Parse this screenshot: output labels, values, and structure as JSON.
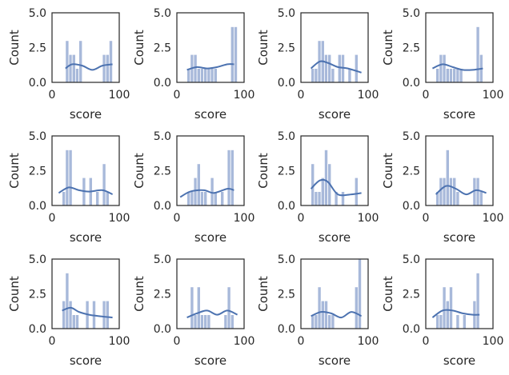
{
  "chart_data": {
    "type": "histogram-grid",
    "rows": 3,
    "cols": 4,
    "xlabel": "score",
    "ylabel": "Count",
    "xlim": [
      0,
      100
    ],
    "ylim": [
      0,
      5
    ],
    "xticks": [
      0,
      100
    ],
    "yticks": [
      0.0,
      2.5,
      5.0
    ],
    "ytick_labels": [
      "0.0",
      "2.5",
      "5.0"
    ],
    "xtick_labels": [
      "0",
      "100"
    ],
    "bin_edges": [
      15,
      20,
      25,
      30,
      35,
      40,
      45,
      50,
      55,
      60,
      65,
      70,
      75,
      80,
      85,
      90
    ],
    "bar_color": "#a8b9da",
    "kde_color": "#4c72b0",
    "subplots": [
      {
        "counts": [
          0,
          3,
          2,
          2,
          1,
          3,
          0,
          0,
          0,
          0,
          0,
          0,
          2,
          2,
          3,
          0
        ],
        "kde": [
          [
            20,
            1.0
          ],
          [
            30,
            1.3
          ],
          [
            45,
            1.2
          ],
          [
            60,
            0.9
          ],
          [
            75,
            1.2
          ],
          [
            90,
            1.3
          ]
        ]
      },
      {
        "counts": [
          1,
          2,
          2,
          1,
          1,
          1,
          1,
          1,
          1,
          0,
          0,
          0,
          0,
          4,
          4,
          0
        ],
        "kde": [
          [
            15,
            0.9
          ],
          [
            30,
            1.1
          ],
          [
            45,
            1.0
          ],
          [
            60,
            1.1
          ],
          [
            75,
            1.3
          ],
          [
            85,
            1.3
          ]
        ]
      },
      {
        "counts": [
          1,
          1,
          3,
          3,
          2,
          2,
          1,
          0,
          2,
          2,
          0,
          1,
          0,
          2,
          0,
          0
        ],
        "kde": [
          [
            15,
            1.0
          ],
          [
            28,
            1.5
          ],
          [
            40,
            1.4
          ],
          [
            55,
            1.1
          ],
          [
            70,
            1.0
          ],
          [
            90,
            0.7
          ]
        ]
      },
      {
        "counts": [
          1,
          2,
          2,
          1,
          1,
          1,
          1,
          1,
          0,
          0,
          0,
          0,
          4,
          2,
          0,
          0
        ],
        "kde": [
          [
            10,
            1.0
          ],
          [
            25,
            1.3
          ],
          [
            40,
            1.1
          ],
          [
            55,
            0.9
          ],
          [
            70,
            0.9
          ],
          [
            85,
            1.0
          ]
        ]
      },
      {
        "counts": [
          1,
          4,
          4,
          0,
          0,
          0,
          2,
          0,
          2,
          0,
          1,
          0,
          3,
          1,
          0,
          0
        ],
        "kde": [
          [
            10,
            0.9
          ],
          [
            25,
            1.3
          ],
          [
            40,
            1.1
          ],
          [
            55,
            1.0
          ],
          [
            75,
            1.1
          ],
          [
            90,
            0.8
          ]
        ]
      },
      {
        "counts": [
          1,
          1,
          2,
          3,
          1,
          1,
          0,
          2,
          1,
          0,
          1,
          0,
          4,
          4,
          0,
          0
        ],
        "kde": [
          [
            5,
            0.6
          ],
          [
            20,
            1.0
          ],
          [
            40,
            1.1
          ],
          [
            55,
            0.9
          ],
          [
            75,
            1.2
          ],
          [
            85,
            1.1
          ]
        ]
      },
      {
        "counts": [
          3,
          1,
          1,
          2,
          4,
          3,
          0,
          1,
          0,
          1,
          0,
          0,
          0,
          2,
          0,
          2
        ],
        "kde": [
          [
            15,
            1.2
          ],
          [
            28,
            1.8
          ],
          [
            40,
            1.7
          ],
          [
            55,
            0.8
          ],
          [
            75,
            0.8
          ],
          [
            90,
            0.9
          ]
        ]
      },
      {
        "counts": [
          1,
          2,
          2,
          4,
          2,
          2,
          1,
          0,
          0,
          0,
          0,
          2,
          2,
          1,
          0,
          0
        ],
        "kde": [
          [
            15,
            0.8
          ],
          [
            30,
            1.4
          ],
          [
            45,
            1.2
          ],
          [
            60,
            0.8
          ],
          [
            75,
            1.1
          ],
          [
            90,
            0.9
          ]
        ]
      },
      {
        "counts": [
          2,
          4,
          2,
          1,
          1,
          0,
          0,
          2,
          0,
          2,
          0,
          0,
          2,
          2,
          0,
          0
        ],
        "kde": [
          [
            15,
            1.3
          ],
          [
            28,
            1.5
          ],
          [
            40,
            1.2
          ],
          [
            55,
            1.0
          ],
          [
            70,
            0.9
          ],
          [
            90,
            0.8
          ]
        ]
      },
      {
        "counts": [
          0,
          3,
          1,
          3,
          1,
          1,
          1,
          0,
          0,
          0,
          0,
          1,
          3,
          1,
          0,
          0
        ],
        "kde": [
          [
            15,
            0.8
          ],
          [
            30,
            1.1
          ],
          [
            45,
            1.3
          ],
          [
            60,
            1.0
          ],
          [
            75,
            1.3
          ],
          [
            90,
            1.0
          ]
        ]
      },
      {
        "counts": [
          1,
          1,
          3,
          2,
          2,
          1,
          1,
          0,
          0,
          0,
          0,
          0,
          0,
          3,
          5,
          0
        ],
        "kde": [
          [
            15,
            0.9
          ],
          [
            30,
            1.2
          ],
          [
            45,
            1.1
          ],
          [
            60,
            0.8
          ],
          [
            75,
            1.2
          ],
          [
            90,
            0.9
          ]
        ]
      },
      {
        "counts": [
          1,
          1,
          3,
          2,
          3,
          0,
          1,
          0,
          1,
          0,
          0,
          2,
          4,
          0,
          0,
          0
        ],
        "kde": [
          [
            10,
            0.8
          ],
          [
            25,
            1.3
          ],
          [
            40,
            1.3
          ],
          [
            55,
            1.1
          ],
          [
            70,
            1.0
          ],
          [
            80,
            1.0
          ]
        ]
      }
    ]
  }
}
